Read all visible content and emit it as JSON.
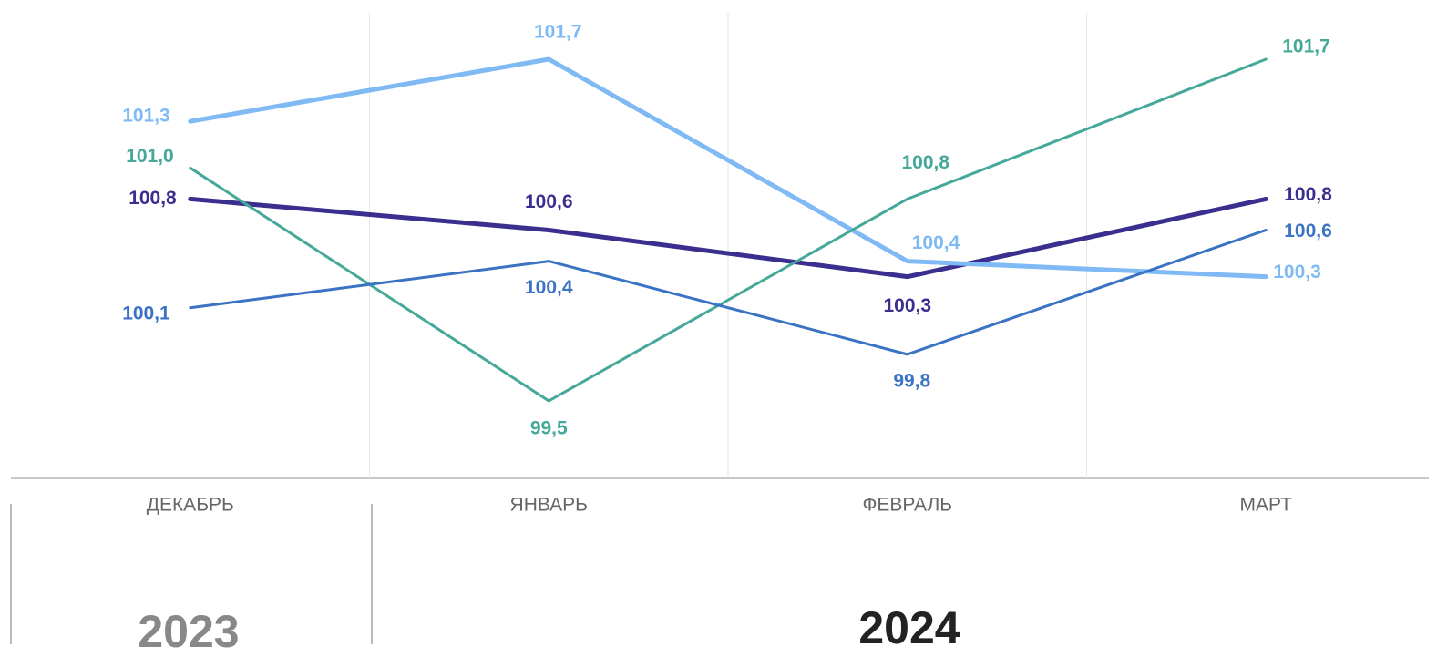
{
  "chart_data": {
    "type": "line",
    "categories": [
      "ДЕКАБРЬ",
      "ЯНВАРЬ",
      "ФЕВРАЛЬ",
      "МАРТ"
    ],
    "series": [
      {
        "color": "#3a2e8f",
        "values": [
          100.8,
          100.6,
          100.3,
          100.8
        ],
        "value_labels": [
          "100,8",
          "100,6",
          "100,3",
          "100,8"
        ]
      },
      {
        "color": "#7fbaf5",
        "values": [
          101.3,
          101.7,
          100.4,
          100.3
        ],
        "value_labels": [
          "101,3",
          "101,7",
          "100,4",
          "100,3"
        ]
      },
      {
        "color": "#45a898",
        "values": [
          101.0,
          99.5,
          100.8,
          101.7
        ],
        "value_labels": [
          "101,0",
          "99,5",
          "100,8",
          "101,7"
        ]
      },
      {
        "color": "#3a72c4",
        "values": [
          100.1,
          100.4,
          99.8,
          100.6
        ],
        "value_labels": [
          "100,1",
          "100,4",
          "99,8",
          "100,6"
        ]
      }
    ],
    "groups": [
      "2023",
      "2024"
    ],
    "grid": true
  }
}
